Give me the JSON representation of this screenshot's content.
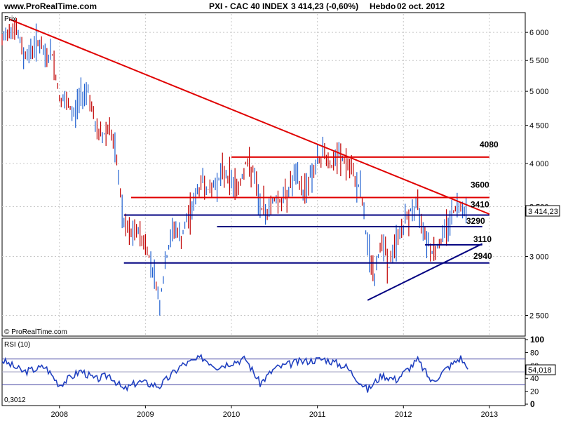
{
  "header": {
    "site": "www.ProRealTime.com",
    "title": "PXI - CAC 40 INDEX",
    "last_value": "3 414,23 (-0,60%)",
    "period": "Hebdo",
    "date": "02 oct. 2012"
  },
  "price_panel": {
    "label": "Prix",
    "watermark": "© ProRealTime.com",
    "current_price_label": "3 414,23",
    "y_ticks": [
      "6 000",
      "5 500",
      "5 000",
      "4 500",
      "4 000",
      "3 500",
      "3 000",
      "2 500"
    ]
  },
  "rsi_panel": {
    "label": "RSI (10)",
    "current_label": "54,018",
    "corner_value": "0,3012",
    "y_ticks": [
      "100",
      "80",
      "60",
      "40",
      "20",
      "0"
    ]
  },
  "x_ticks": [
    "2008",
    "2009",
    "2010",
    "2011",
    "2012",
    "2013"
  ],
  "levels": [
    "4080",
    "3600",
    "3410",
    "3290",
    "3110",
    "2940"
  ],
  "chart_data": {
    "type": "line",
    "title": "PXI - CAC 40 INDEX",
    "y_scale": "log",
    "ylim": [
      2350,
      6350
    ],
    "xlim": [
      "2007-05",
      "2013-06"
    ],
    "grid": true,
    "price_path": [
      {
        "x": "2007-05",
        "y": 5800
      },
      {
        "x": "2007-06",
        "y": 6100
      },
      {
        "x": "2007-07",
        "y": 6050
      },
      {
        "x": "2007-08",
        "y": 5600
      },
      {
        "x": "2007-09",
        "y": 5650
      },
      {
        "x": "2007-10",
        "y": 5850
      },
      {
        "x": "2007-11",
        "y": 5550
      },
      {
        "x": "2007-12",
        "y": 5600
      },
      {
        "x": "2008-01",
        "y": 4900
      },
      {
        "x": "2008-02",
        "y": 4800
      },
      {
        "x": "2008-03",
        "y": 4650
      },
      {
        "x": "2008-04",
        "y": 4950
      },
      {
        "x": "2008-05",
        "y": 5050
      },
      {
        "x": "2008-06",
        "y": 4450
      },
      {
        "x": "2008-07",
        "y": 4350
      },
      {
        "x": "2008-08",
        "y": 4500
      },
      {
        "x": "2008-09",
        "y": 4000
      },
      {
        "x": "2008-10",
        "y": 3300
      },
      {
        "x": "2008-11",
        "y": 3200
      },
      {
        "x": "2008-12",
        "y": 3250
      },
      {
        "x": "2009-01",
        "y": 3100
      },
      {
        "x": "2009-02",
        "y": 2900
      },
      {
        "x": "2009-03",
        "y": 2600
      },
      {
        "x": "2009-04",
        "y": 3000
      },
      {
        "x": "2009-05",
        "y": 3300
      },
      {
        "x": "2009-06",
        "y": 3150
      },
      {
        "x": "2009-07",
        "y": 3400
      },
      {
        "x": "2009-08",
        "y": 3600
      },
      {
        "x": "2009-09",
        "y": 3800
      },
      {
        "x": "2009-10",
        "y": 3650
      },
      {
        "x": "2009-11",
        "y": 3800
      },
      {
        "x": "2009-12",
        "y": 3900
      },
      {
        "x": "2010-01",
        "y": 3800
      },
      {
        "x": "2010-02",
        "y": 3700
      },
      {
        "x": "2010-03",
        "y": 4000
      },
      {
        "x": "2010-04",
        "y": 3900
      },
      {
        "x": "2010-05",
        "y": 3500
      },
      {
        "x": "2010-06",
        "y": 3450
      },
      {
        "x": "2010-07",
        "y": 3600
      },
      {
        "x": "2010-08",
        "y": 3550
      },
      {
        "x": "2010-09",
        "y": 3700
      },
      {
        "x": "2010-10",
        "y": 3850
      },
      {
        "x": "2010-11",
        "y": 3650
      },
      {
        "x": "2010-12",
        "y": 3850
      },
      {
        "x": "2011-01",
        "y": 4000
      },
      {
        "x": "2011-02",
        "y": 4150
      },
      {
        "x": "2011-03",
        "y": 3950
      },
      {
        "x": "2011-04",
        "y": 4100
      },
      {
        "x": "2011-05",
        "y": 4000
      },
      {
        "x": "2011-06",
        "y": 3850
      },
      {
        "x": "2011-07",
        "y": 3700
      },
      {
        "x": "2011-08",
        "y": 3100
      },
      {
        "x": "2011-09",
        "y": 2800
      },
      {
        "x": "2011-10",
        "y": 3200
      },
      {
        "x": "2011-11",
        "y": 2900
      },
      {
        "x": "2011-12",
        "y": 3150
      },
      {
        "x": "2012-01",
        "y": 3300
      },
      {
        "x": "2012-02",
        "y": 3450
      },
      {
        "x": "2012-03",
        "y": 3500
      },
      {
        "x": "2012-04",
        "y": 3250
      },
      {
        "x": "2012-05",
        "y": 3050
      },
      {
        "x": "2012-06",
        "y": 3100
      },
      {
        "x": "2012-07",
        "y": 3300
      },
      {
        "x": "2012-08",
        "y": 3450
      },
      {
        "x": "2012-09",
        "y": 3550
      },
      {
        "x": "2012-10",
        "y": 3414
      }
    ],
    "horizontal_levels": [
      {
        "value": 4080,
        "from": "2010-01",
        "to": "2013-01",
        "color": "#e00000"
      },
      {
        "value": 3600,
        "from": "2008-11",
        "to": "2013-01",
        "color": "#e00000"
      },
      {
        "value": 3410,
        "from": "2008-10",
        "to": "2013-01",
        "color": "#000080"
      },
      {
        "value": 3290,
        "from": "2009-11",
        "to": "2012-12",
        "color": "#000080"
      },
      {
        "value": 3110,
        "from": "2012-04",
        "to": "2012-12",
        "color": "#000080"
      },
      {
        "value": 2940,
        "from": "2008-10",
        "to": "2013-01",
        "color": "#000080"
      }
    ],
    "trendlines": [
      {
        "from": {
          "x": "2007-06",
          "y": 6250
        },
        "to": {
          "x": "2013-01",
          "y": 3420
        },
        "color": "#e00000"
      },
      {
        "from": {
          "x": "2011-08",
          "y": 2620
        },
        "to": {
          "x": "2012-12",
          "y": 3120
        },
        "color": "#000080"
      }
    ],
    "rsi": {
      "ylim": [
        0,
        100
      ],
      "reference_lines": [
        70,
        50,
        30
      ],
      "path": [
        {
          "x": "2007-05",
          "y": 68
        },
        {
          "x": "2007-08",
          "y": 50
        },
        {
          "x": "2007-11",
          "y": 58
        },
        {
          "x": "2008-01",
          "y": 30
        },
        {
          "x": "2008-04",
          "y": 52
        },
        {
          "x": "2008-06",
          "y": 38
        },
        {
          "x": "2008-08",
          "y": 45
        },
        {
          "x": "2008-10",
          "y": 22
        },
        {
          "x": "2008-12",
          "y": 35
        },
        {
          "x": "2009-03",
          "y": 28
        },
        {
          "x": "2009-06",
          "y": 60
        },
        {
          "x": "2009-09",
          "y": 72
        },
        {
          "x": "2009-11",
          "y": 58
        },
        {
          "x": "2010-01",
          "y": 65
        },
        {
          "x": "2010-03",
          "y": 70
        },
        {
          "x": "2010-05",
          "y": 32
        },
        {
          "x": "2010-07",
          "y": 55
        },
        {
          "x": "2010-10",
          "y": 65
        },
        {
          "x": "2011-02",
          "y": 70
        },
        {
          "x": "2011-05",
          "y": 58
        },
        {
          "x": "2011-08",
          "y": 22
        },
        {
          "x": "2011-10",
          "y": 45
        },
        {
          "x": "2011-12",
          "y": 38
        },
        {
          "x": "2012-03",
          "y": 68
        },
        {
          "x": "2012-05",
          "y": 34
        },
        {
          "x": "2012-07",
          "y": 55
        },
        {
          "x": "2012-09",
          "y": 72
        },
        {
          "x": "2012-10",
          "y": 54
        }
      ]
    }
  }
}
